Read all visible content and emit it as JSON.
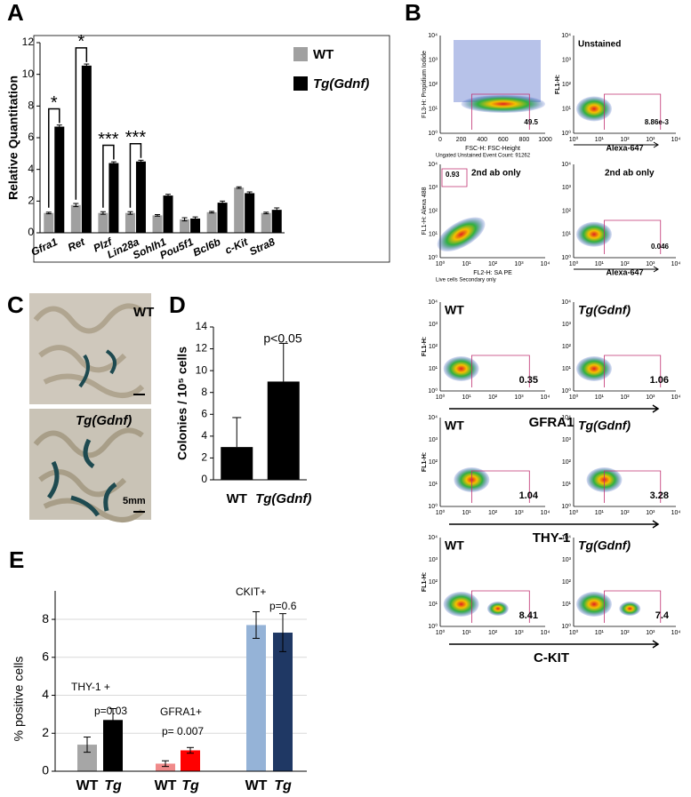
{
  "letters": [
    "A",
    "B",
    "C",
    "D",
    "E"
  ],
  "chart_data": [
    {
      "type": "bar",
      "categories": [
        "Gfra1",
        "Ret",
        "Plzf",
        "Lin28a",
        "Sohlh1",
        "Pou5f1",
        "Bcl6b",
        "c-Kit",
        "Stra8"
      ],
      "series": [
        {
          "name": "WT",
          "color": "#a0a0a0",
          "values": [
            1.25,
            1.75,
            1.25,
            1.25,
            1.1,
            0.85,
            1.3,
            2.85,
            1.25
          ],
          "errors": [
            0.05,
            0.1,
            0.08,
            0.08,
            0.05,
            0.1,
            0.05,
            0.05,
            0.05
          ]
        },
        {
          "name": "Tg(Gdnf)",
          "color": "#000000",
          "values": [
            6.7,
            10.55,
            4.4,
            4.5,
            2.35,
            0.9,
            1.9,
            2.5,
            1.45
          ],
          "errors": [
            0.1,
            0.1,
            0.08,
            0.08,
            0.08,
            0.1,
            0.1,
            0.08,
            0.12
          ]
        }
      ],
      "ylim": [
        0,
        12
      ],
      "yticks": [
        0,
        2,
        4,
        6,
        8,
        10,
        12
      ],
      "ylabel": "Relative Quantitation",
      "legend": "upper right",
      "annotations": [
        "*",
        "*",
        "***",
        "***"
      ]
    },
    {
      "type": "bar",
      "categories": [
        "WT",
        "Tg(Gdnf)"
      ],
      "values": [
        3,
        9
      ],
      "errors": [
        2.7,
        3.5
      ],
      "color": "#000000",
      "ylim": [
        0,
        14
      ],
      "yticks": [
        0,
        2,
        4,
        6,
        8,
        10,
        12,
        14
      ],
      "ylabel": "Colonies / 10⁵ cells",
      "annotations": [
        "p<0.05"
      ]
    },
    {
      "type": "bar",
      "categories": [
        "WT",
        "Tg",
        "WT",
        "Tg",
        "WT",
        "Tg"
      ],
      "values": [
        1.4,
        2.7,
        0.4,
        1.1,
        7.7,
        7.3
      ],
      "errors": [
        0.4,
        0.6,
        0.15,
        0.15,
        0.7,
        1.0
      ],
      "colors": [
        "#a6a6a6",
        "#000000",
        "#f08a8a",
        "#ff0000",
        "#95b3d7",
        "#1f3864"
      ],
      "ylim": [
        0,
        9.5
      ],
      "yticks": [
        0,
        2,
        4,
        6,
        8
      ],
      "grid": true,
      "ylabel": "% positive cells",
      "annotations": [
        "THY-1 +",
        "p=0.03",
        "GFRA1+",
        "p= 0.007",
        "CKIT+",
        "p=0.6"
      ]
    }
  ],
  "panel_c": {
    "top": "WT",
    "bottom": "Tg(Gdnf)",
    "scale": "5mm"
  },
  "flow": {
    "ticks": [
      "10⁰",
      "10¹",
      "10²",
      "10³",
      "10⁴"
    ],
    "rows": [
      {
        "left": {
          "ylabel": "FL3-H: Propidium Iodide",
          "xlabel": "FSC-H: FSC-Height",
          "gate": "49.5",
          "note": "Ungated Unstained Event Count: 91262",
          "xticks": [
            "0",
            "200",
            "400",
            "600",
            "800",
            "1000"
          ]
        },
        "right": {
          "title": "Unstained",
          "ylabel": "FL1-H:",
          "xlabel": "Alexa-647",
          "gate": "8.86e-3"
        }
      },
      {
        "left": {
          "title": "2nd ab only",
          "ylabel": "FL1-H: Alexa 488",
          "xlabel": "FL2-H: SA PE",
          "gate": "0.93",
          "note": "Live cells Secondary only"
        },
        "right": {
          "title": "2nd ab only",
          "xlabel": "Alexa-647",
          "gate": "0.046"
        }
      },
      {
        "left": {
          "title": "WT",
          "ylabel": "FL1-H:",
          "gate": "0.35"
        },
        "right": {
          "title": "Tg(Gdnf)",
          "gate": "1.06"
        },
        "marker": "GFRA1"
      },
      {
        "left": {
          "title": "WT",
          "ylabel": "FL1-H:",
          "gate": "1.04"
        },
        "right": {
          "title": "Tg(Gdnf)",
          "gate": "3.28"
        },
        "marker": "THY-1"
      },
      {
        "left": {
          "title": "WT",
          "ylabel": "FL1-H:",
          "gate": "8.41"
        },
        "right": {
          "title": "Tg(Gdnf)",
          "gate": "7.4"
        },
        "marker": "C-KIT"
      }
    ]
  }
}
